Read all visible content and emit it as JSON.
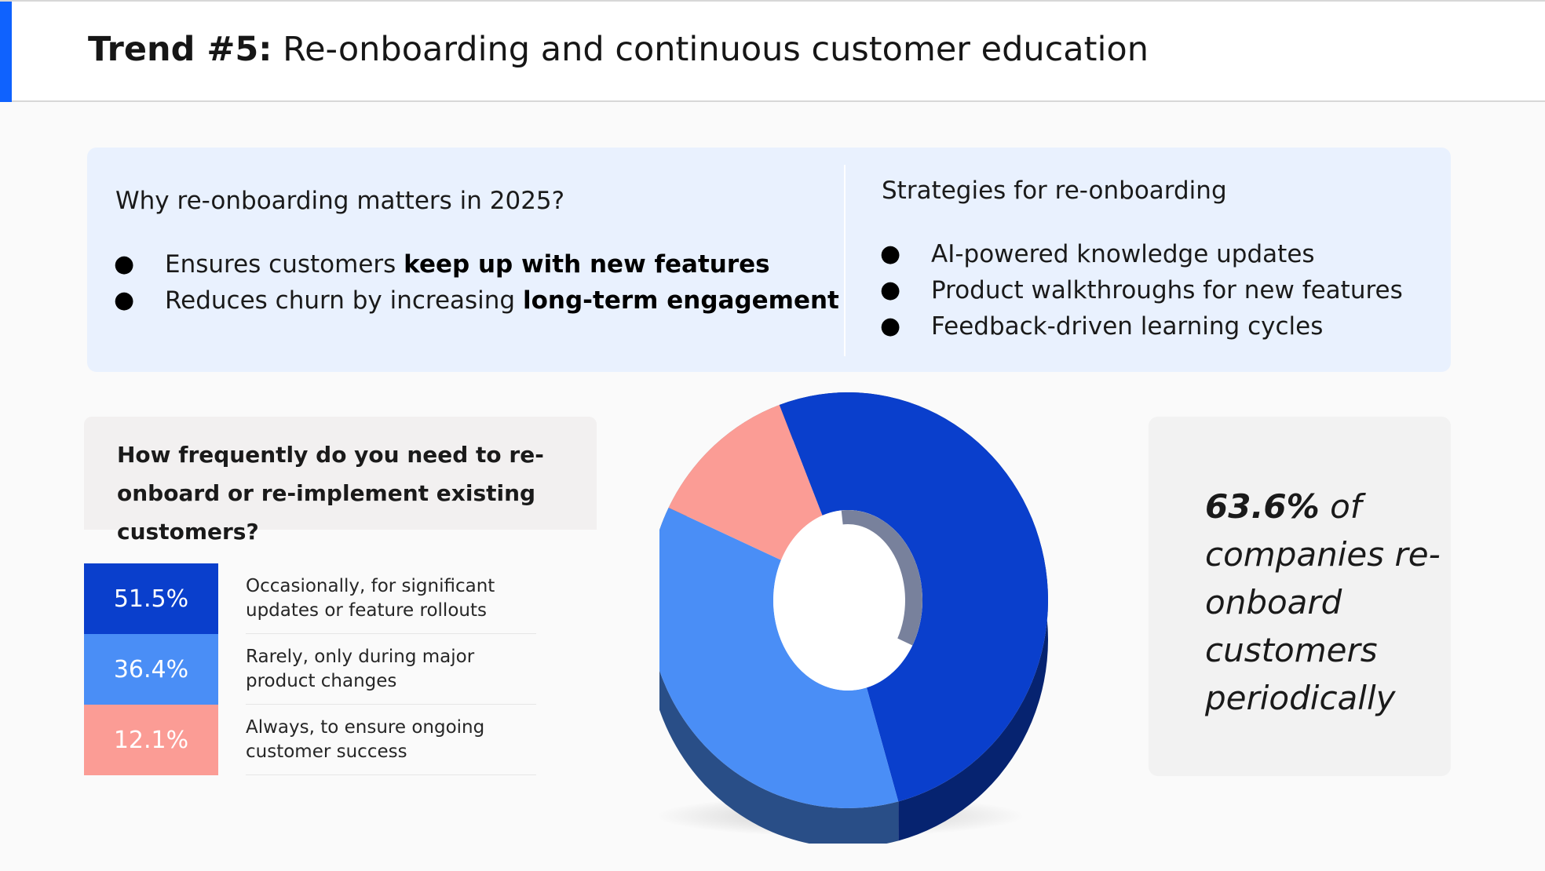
{
  "header": {
    "title_bold": "Trend #5:",
    "title_rest": " Re-onboarding and continuous customer education"
  },
  "why": {
    "heading": "Why re-onboarding matters in 2025?",
    "items": [
      {
        "pre": "Ensures customers ",
        "bold": "keep up with new features"
      },
      {
        "pre": "Reduces churn by increasing ",
        "bold": "long-term engagement"
      }
    ]
  },
  "strategies": {
    "heading": "Strategies for re-onboarding",
    "items": [
      "AI-powered knowledge updates",
      "Product walkthroughs for new features",
      "Feedback-driven learning cycles"
    ]
  },
  "bullet_char": "●",
  "survey": {
    "question": "How frequently do you need to re-onboard or re-implement existing customers?"
  },
  "chart_data": {
    "type": "pie",
    "categories": [
      "Occasionally, for significant updates or feature rollouts",
      "Rarely, only during major product changes",
      "Always, to ensure ongoing customer success"
    ],
    "values": [
      51.5,
      36.4,
      12.1
    ],
    "value_labels": [
      "51.5%",
      "36.4%",
      "12.1%"
    ],
    "colors": [
      "#0a3fcc",
      "#4a8ef6",
      "#fb9c95"
    ],
    "donut": true
  },
  "stat": {
    "value": "63.6%",
    "text": " of companies re-onboard customers periodically"
  }
}
